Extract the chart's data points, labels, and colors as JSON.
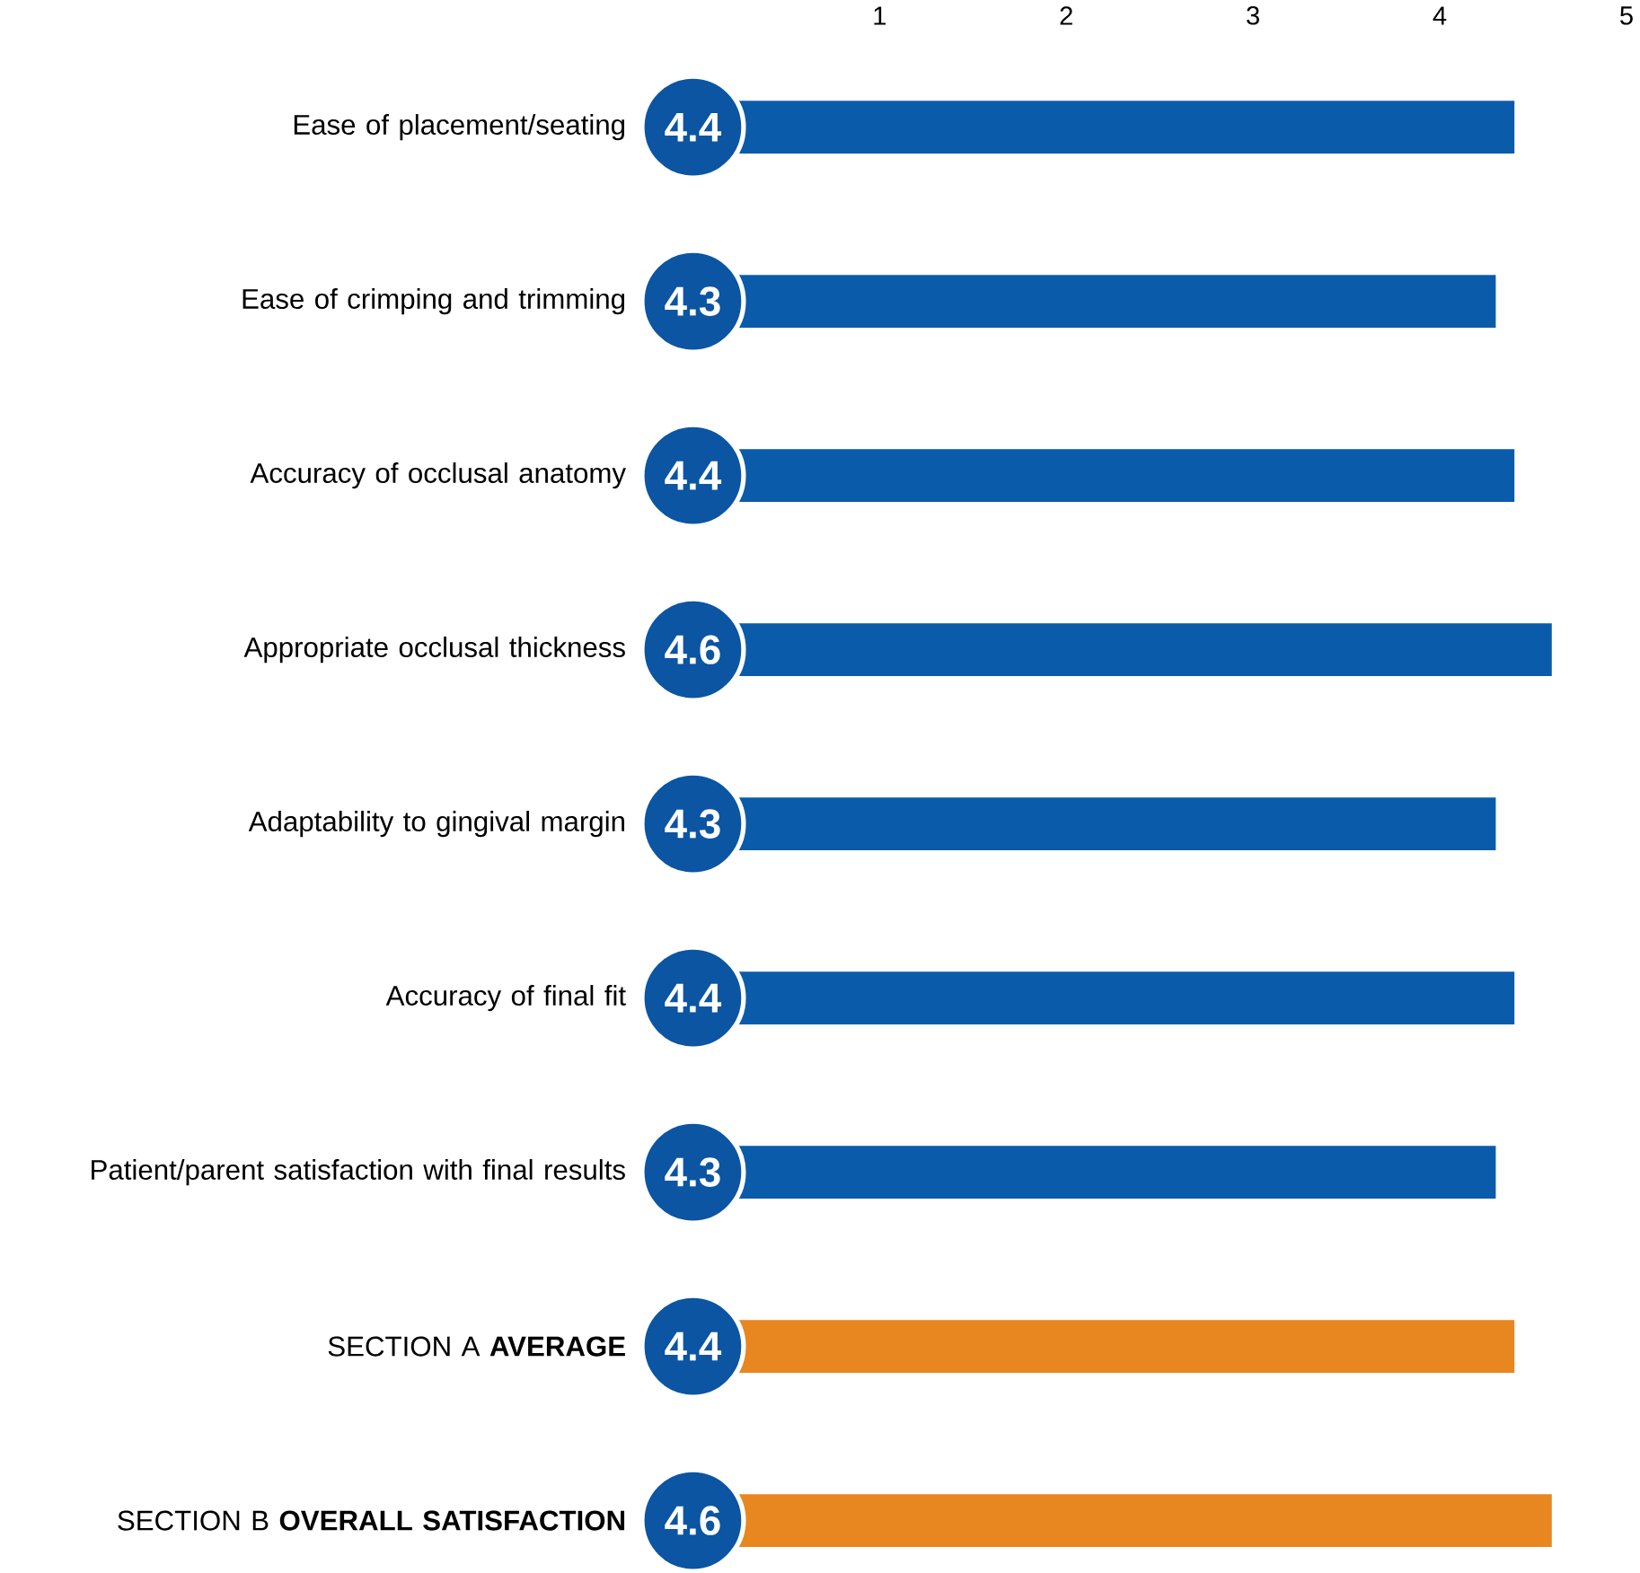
{
  "chart_data": {
    "type": "bar",
    "orientation": "horizontal",
    "categories": [
      "Ease of placement/seating",
      "Ease of crimping and trimming",
      "Accuracy of occlusal anatomy",
      "Appropriate occlusal thickness",
      "Adaptability to gingival margin",
      "Accuracy of final fit",
      "Patient/parent satisfaction with final results",
      "SECTION A **AVERAGE**",
      "SECTION B **OVERALL SATISFACTION**"
    ],
    "values": [
      4.4,
      4.3,
      4.4,
      4.6,
      4.3,
      4.4,
      4.3,
      4.4,
      4.6
    ],
    "colors": [
      "#0b5bab",
      "#0b5bab",
      "#0b5bab",
      "#0b5bab",
      "#0b5bab",
      "#0b5bab",
      "#0b5bab",
      "#e8861f",
      "#e8861f"
    ],
    "xlim": [
      0,
      5
    ],
    "xticks": [
      1,
      2,
      3,
      4,
      5
    ],
    "data_labels": true
  }
}
